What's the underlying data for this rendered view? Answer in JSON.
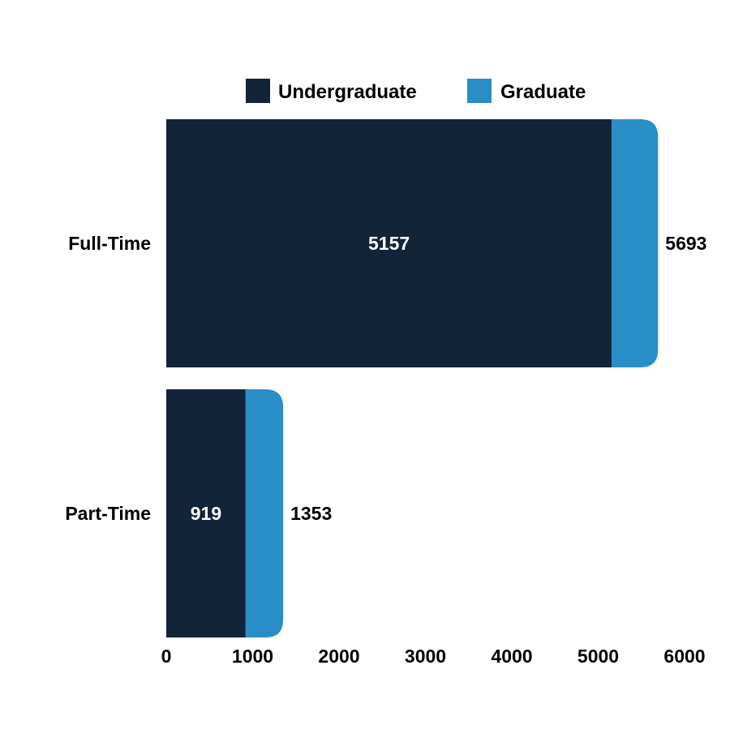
{
  "chart_data": {
    "type": "bar",
    "orientation": "horizontal",
    "stacked": true,
    "categories": [
      "Full-Time",
      "Part-Time"
    ],
    "series": [
      {
        "name": "Undergraduate",
        "values": [
          5157,
          919
        ],
        "color": "#12243a"
      },
      {
        "name": "Graduate",
        "values": [
          536,
          434
        ],
        "color": "#2a8ec6"
      }
    ],
    "segment_labels": [
      "5157",
      "919"
    ],
    "totals": [
      5693,
      1353
    ],
    "total_labels": [
      "5693",
      "1353"
    ],
    "xlim": [
      0,
      6000
    ],
    "x_ticks": [
      0,
      1000,
      2000,
      3000,
      4000,
      5000,
      6000
    ],
    "x_tick_labels": [
      "0",
      "1000",
      "2000",
      "3000",
      "4000",
      "5000",
      "6000"
    ],
    "legend": {
      "position": "top",
      "items": [
        "Undergraduate",
        "Graduate"
      ]
    },
    "grid": false
  }
}
